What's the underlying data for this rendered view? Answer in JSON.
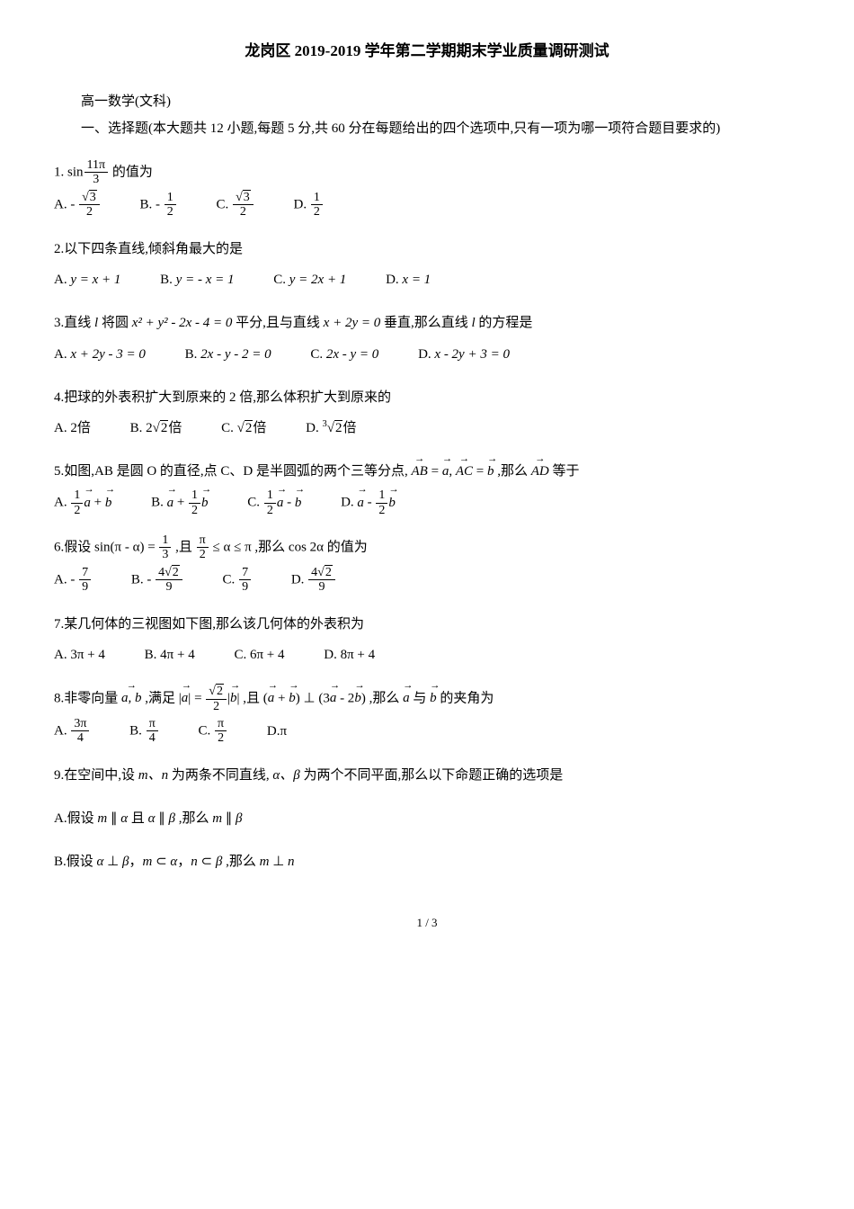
{
  "title": "龙岗区 2019-2019 学年第二学期期末学业质量调研测试",
  "subtitle": "高一数学(文科)",
  "instruction": "一、选择题(本大题共 12 小题,每题 5 分,共 60 分在每题给出的四个选项中,只有一项为哪一项符合题目要求的)",
  "q1": {
    "prefix": "1. ",
    "expr_prefix": "sin",
    "frac_num": "11π",
    "frac_den": "3",
    "suffix": " 的值为",
    "A_label": "A. ",
    "A_neg": "- ",
    "A_num_sqrt": "3",
    "A_den": "2",
    "B_label": "B. ",
    "B_neg": "- ",
    "B_num": "1",
    "B_den": "2",
    "C_label": "C. ",
    "C_num_sqrt": "3",
    "C_den": "2",
    "D_label": "D. ",
    "D_num": "1",
    "D_den": "2"
  },
  "q2": {
    "text": "2.以下四条直线,倾斜角最大的是",
    "A_label": "A. ",
    "A_expr": "y = x + 1",
    "B_label": "B. ",
    "B_expr": "y = - x = 1",
    "C_label": "C. ",
    "C_expr": "y = 2x + 1",
    "D_label": "D. ",
    "D_expr": "x = 1"
  },
  "q3": {
    "prefix": "3.直线 ",
    "l1": "l",
    "mid1": " 将圆 ",
    "circle": "x² + y² - 2x - 4 = 0",
    "mid2": " 平分,且与直线 ",
    "line2": "x + 2y = 0",
    "mid3": " 垂直,那么直线 ",
    "l2": "l",
    "suffix": " 的方程是",
    "A_label": "A. ",
    "A_expr": "x + 2y - 3 = 0",
    "B_label": "B. ",
    "B_expr": "2x - y - 2 = 0",
    "C_label": "C. ",
    "C_expr": "2x - y = 0",
    "D_label": "D. ",
    "D_expr": "x - 2y + 3 = 0"
  },
  "q4": {
    "text": "4.把球的外表积扩大到原来的 2 倍,那么体积扩大到原来的",
    "A_label": "A. ",
    "A_expr_suffix": "倍",
    "A_expr_num": "2",
    "B_label": "B. ",
    "B_expr_suffix": "倍",
    "B_coef": "2",
    "B_sqrt": "2",
    "C_label": "C. ",
    "C_expr_suffix": "倍",
    "C_sqrt": "2",
    "D_label": "D. ",
    "D_expr_suffix": "倍",
    "D_root": "3",
    "D_sqrt": "2"
  },
  "q5": {
    "prefix": "5.如图,AB 是圆 O 的直径,点 C、D 是半圆弧的两个三等分点, ",
    "vec1": "AB",
    "eq1": " = ",
    "a1": "a",
    "comma": ", ",
    "vec2": "AC",
    "eq2": " = ",
    "b1": "b",
    "mid": " ,那么 ",
    "vec3": "AD",
    "suffix": " 等于",
    "A_label": "A. ",
    "A_num": "1",
    "A_den": "2",
    "A_a": "a",
    "A_plus": " + ",
    "A_b": "b",
    "B_label": "B. ",
    "B_a": "a",
    "B_plus": " + ",
    "B_num": "1",
    "B_den": "2",
    "B_b": "b",
    "C_label": "C. ",
    "C_num": "1",
    "C_den": "2",
    "C_a": "a",
    "C_minus": " - ",
    "C_b": "b",
    "D_label": "D. ",
    "D_a": "a",
    "D_minus": " - ",
    "D_num": "1",
    "D_den": "2",
    "D_b": "b"
  },
  "q6": {
    "prefix": "6.假设 ",
    "sin": "sin(π - α) = ",
    "frac1_num": "1",
    "frac1_den": "3",
    "mid1": " ,且 ",
    "frac2_num": "π",
    "frac2_den": "2",
    "ineq": " ≤ α ≤ π",
    "mid2": " ,那么 ",
    "cos": "cos 2α",
    "suffix": " 的值为",
    "A_label": "A. ",
    "A_neg": "- ",
    "A_num": "7",
    "A_den": "9",
    "B_label": "B. ",
    "B_neg": "- ",
    "B_coef": "4",
    "B_sqrt": "2",
    "B_den": "9",
    "C_label": "C. ",
    "C_num": "7",
    "C_den": "9",
    "D_label": "D. ",
    "D_coef": "4",
    "D_sqrt": "2",
    "D_den": "9"
  },
  "q7": {
    "text": "7.某几何体的三视图如下图,那么该几何体的外表积为",
    "A_label": "A. ",
    "A_expr": "3π + 4",
    "B_label": "B. ",
    "B_expr": "4π + 4",
    "C_label": "C. ",
    "C_expr": "6π + 4",
    "D_label": "D. ",
    "D_expr": "8π + 4"
  },
  "q8": {
    "prefix": "8.非零向量 ",
    "ab": "a, b",
    "mid1": " ,满足 ",
    "bar1_l": "|",
    "a1": "a",
    "bar1_r": "|",
    "eq": " = ",
    "sqrt2": "2",
    "den2": "2",
    "bar2_l": "|",
    "b1": "b",
    "bar2_r": "|",
    "mid2": " ,且 ",
    "lp1": "(",
    "a2": "a",
    "plus": " + ",
    "b2": "b",
    "rp1": ")",
    "perp": " ⊥ ",
    "lp2": "(",
    "three": "3",
    "a3": "a",
    "minus": " - 2",
    "b3": "b",
    "rp2": ")",
    "mid3": " ,那么 ",
    "a4": "a",
    "and": " 与 ",
    "b4": "b",
    "suffix": " 的夹角为",
    "A_label": "A. ",
    "A_num": "3π",
    "A_den": "4",
    "B_label": "B. ",
    "B_num": "π",
    "B_den": "4",
    "C_label": "C. ",
    "C_num": "π",
    "C_den": "2",
    "D_label": "D.",
    "D_expr": "π"
  },
  "q9": {
    "prefix": "9.在空间中,设 ",
    "mn": "m、n",
    "mid1": " 为两条不同直线, ",
    "ab": "α、β",
    "suffix": " 为两个不同平面,那么以下命题正确的选项是",
    "A_prefix": "A.假设 ",
    "A_m": "m",
    "A_par1": " ∥ ",
    "A_a": "α",
    "A_and": " 且 ",
    "A_a2": "α",
    "A_par2": " ∥ ",
    "A_b": "β",
    "A_then": " ,那么 ",
    "A_m2": "m",
    "A_par3": " ∥ ",
    "A_b2": "β",
    "B_prefix": "B.假设 ",
    "B_a": "α",
    "B_perp": " ⊥ ",
    "B_b": "β",
    "B_c1": "，",
    "B_m": "m",
    "B_in1": " ⊂ ",
    "B_a2": "α",
    "B_c2": "，",
    "B_n": "n",
    "B_in2": " ⊂ ",
    "B_b2": "β",
    "B_then": " ,那么 ",
    "B_m2": "m",
    "B_perp2": " ⊥ ",
    "B_n2": "n"
  },
  "pagenum": "1 / 3"
}
